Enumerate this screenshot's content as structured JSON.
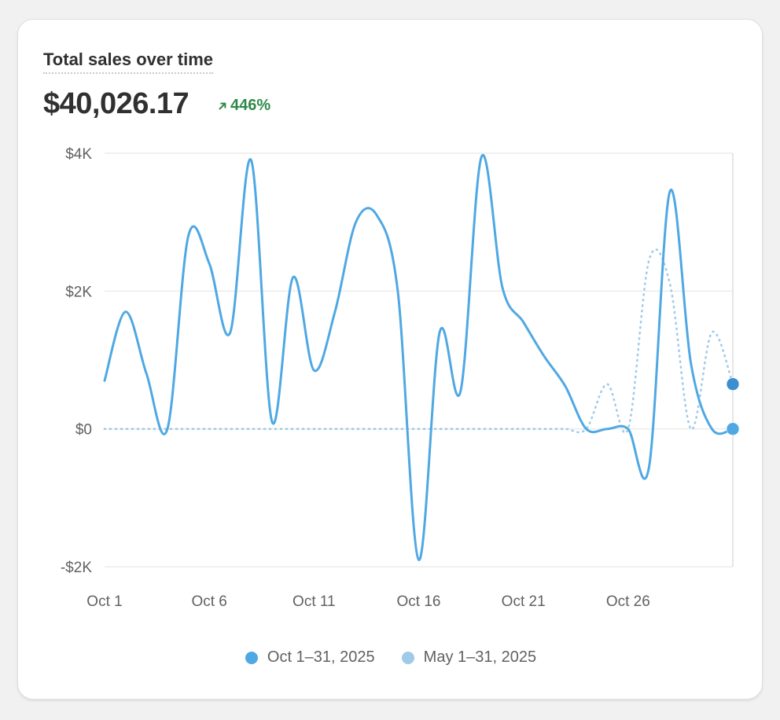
{
  "card": {
    "title": "Total sales over time",
    "total_value": "$40,026.17",
    "change_value": "446%",
    "change_direction": "up",
    "change_color": "#2e8a49",
    "change_icon": "arrow-up-right-icon"
  },
  "chart_data": {
    "type": "line",
    "x_tick_labels": [
      "Oct 1",
      "Oct 6",
      "Oct 11",
      "Oct 16",
      "Oct 21",
      "Oct 26"
    ],
    "x_tick_days": [
      1,
      6,
      11,
      16,
      21,
      26
    ],
    "x_range": [
      1,
      31
    ],
    "y_tick_labels": [
      "$4K",
      "$2K",
      "$0",
      "-$2K"
    ],
    "y_tick_values": [
      4000,
      2000,
      0,
      -2000
    ],
    "ylim": [
      -2000,
      4000
    ],
    "grid": true,
    "legend_position": "bottom",
    "series": [
      {
        "name": "Oct 1–31, 2025",
        "color": "#4fa8e3",
        "style": "solid",
        "x": [
          1,
          2,
          3,
          4,
          5,
          6,
          7,
          8,
          9,
          10,
          11,
          12,
          13,
          14,
          15,
          16,
          17,
          18,
          19,
          20,
          21,
          22,
          23,
          24,
          25,
          26,
          27,
          28,
          29,
          30,
          31
        ],
        "values": [
          700,
          1700,
          800,
          0,
          2800,
          2400,
          1400,
          3900,
          100,
          2200,
          850,
          1700,
          3000,
          3100,
          2000,
          -1900,
          1400,
          550,
          3950,
          2050,
          1550,
          1050,
          620,
          0,
          0,
          0,
          -550,
          3450,
          950,
          0,
          0
        ]
      },
      {
        "name": "May 1–31, 2025",
        "color": "#9fcae8",
        "style": "dotted",
        "x": [
          1,
          2,
          3,
          4,
          5,
          6,
          7,
          8,
          9,
          10,
          11,
          12,
          13,
          14,
          15,
          16,
          17,
          18,
          19,
          20,
          21,
          22,
          23,
          24,
          25,
          26,
          27,
          28,
          29,
          30,
          31
        ],
        "values": [
          0,
          0,
          0,
          0,
          0,
          0,
          0,
          0,
          0,
          0,
          0,
          0,
          0,
          0,
          0,
          0,
          0,
          0,
          0,
          0,
          0,
          0,
          0,
          0,
          650,
          0,
          2450,
          2100,
          0,
          1400,
          650
        ]
      }
    ]
  }
}
